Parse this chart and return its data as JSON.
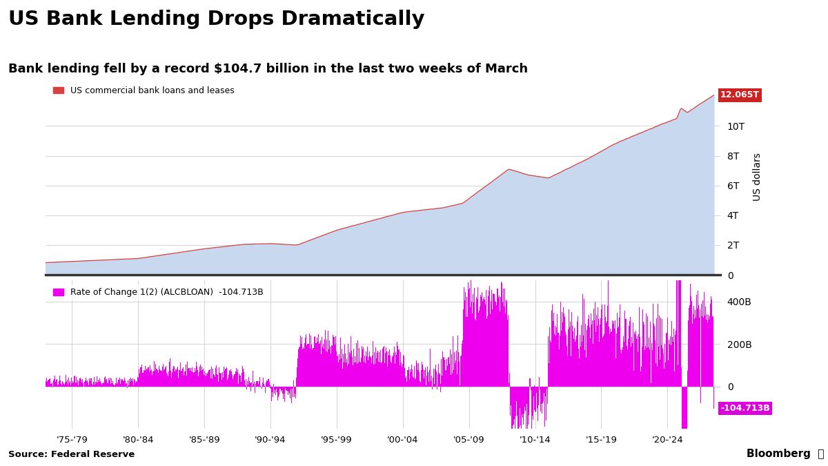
{
  "title": "US Bank Lending Drops Dramatically",
  "subtitle": "Bank lending fell by a record $104.7 billion in the last two weeks of March",
  "title_fontsize": 21,
  "subtitle_fontsize": 13,
  "background_color": "#ffffff",
  "area_color": "#c8d8ee",
  "line_color": "#d94040",
  "bar_color": "#ee00ee",
  "label_top": "US commercial bank loans and leases",
  "label_bottom": "Rate of Change 1(2) (ALCBLOAN)  -104.713B",
  "annotation_top": "12.065T",
  "annotation_bottom": "-104.713B",
  "annotation_top_color": "#cc2222",
  "annotation_bottom_color": "#dd00dd",
  "ylabel_top": "US dollars",
  "xtick_labels": [
    "'75-'79",
    "'80-'84",
    "'85-'89",
    "'90-'94",
    "'95-'99",
    "'00-'04",
    "'05-'09",
    "'10-'14",
    "'15-'19",
    "'20-'24"
  ],
  "source": "Source: Federal Reserve",
  "grid_color": "#cccccc",
  "divider_color": "#333333"
}
